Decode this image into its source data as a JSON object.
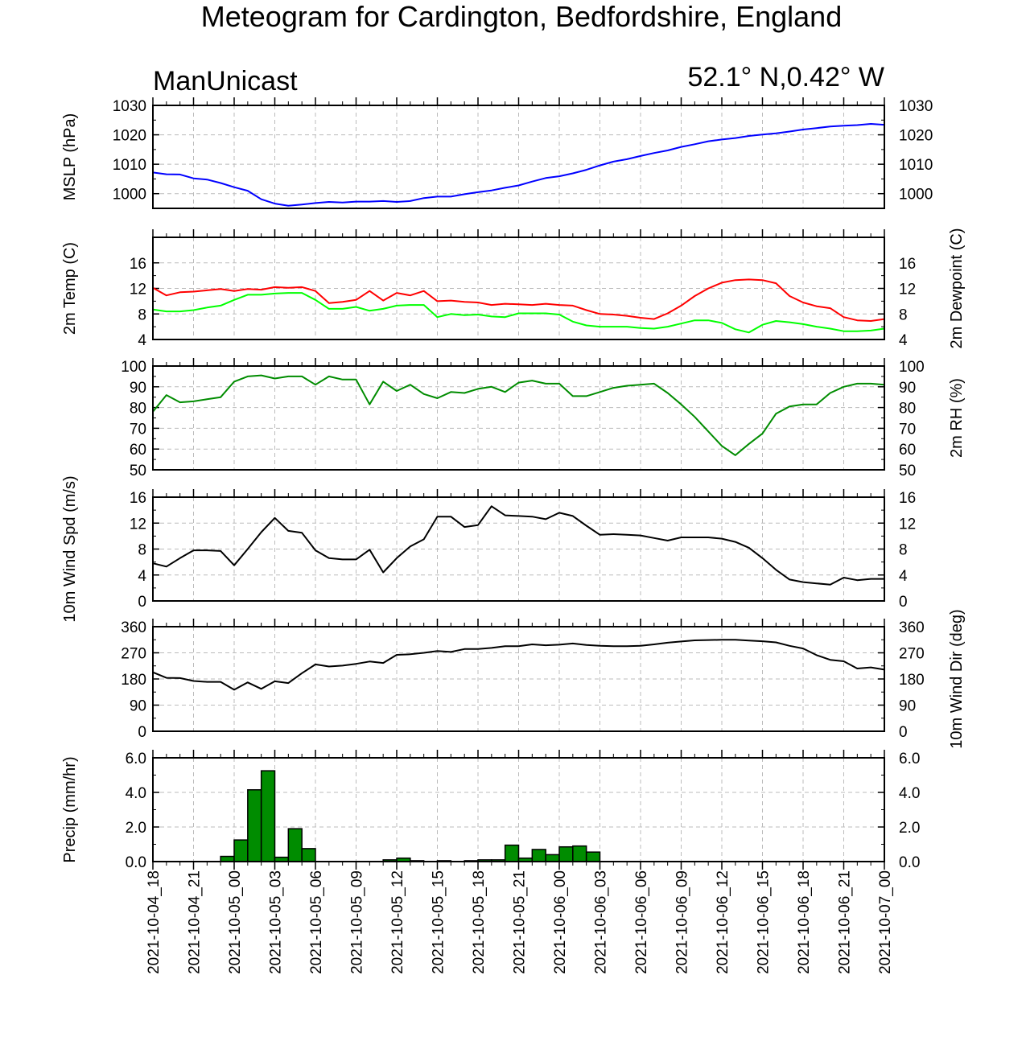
{
  "title": "Meteogram for Cardington, Bedfordshire, England",
  "model": "ManUnicast",
  "location": "52.1° N,0.42° W",
  "chart_data": [
    {
      "id": "mslp",
      "type": "line",
      "left_label": "MSLP (hPa)",
      "right_label": "",
      "ylim": [
        995,
        1030
      ],
      "yticks": [
        1000,
        1010,
        1020,
        1030
      ],
      "ytick_labels": [
        "1000",
        "1010",
        "1020",
        "1030"
      ],
      "grid": true,
      "series": [
        {
          "color": "#0000ff",
          "values": [
            1007.2,
            1006.6,
            1006.5,
            1005.2,
            1004.8,
            1003.6,
            1002.2,
            1001,
            998.1,
            996.6,
            995.9,
            996.3,
            996.8,
            997.2,
            997,
            997.3,
            997.3,
            997.5,
            997.2,
            997.5,
            998.5,
            999,
            999,
            999.8,
            1000.5,
            1001.1,
            1002,
            1002.8,
            1004.1,
            1005.3,
            1005.9,
            1006.9,
            1008.1,
            1009.6,
            1010.9,
            1011.7,
            1012.8,
            1013.8,
            1014.7,
            1015.9,
            1016.8,
            1017.8,
            1018.4,
            1018.9,
            1019.6,
            1020.1,
            1020.5,
            1021.1,
            1021.8,
            1022.3,
            1022.8,
            1023.1,
            1023.3,
            1023.7,
            1023.4
          ]
        }
      ]
    },
    {
      "id": "temp",
      "type": "line",
      "left_label": "2m Temp (C)",
      "right_label": "2m Dewpoint (C)",
      "ylim": [
        4,
        20
      ],
      "yticks": [
        4,
        8,
        12,
        16
      ],
      "ytick_labels": [
        "4",
        "8",
        "12",
        "16"
      ],
      "grid": true,
      "series": [
        {
          "color": "#ff0000",
          "values": [
            12.1,
            10.9,
            11.4,
            11.5,
            11.7,
            11.9,
            11.6,
            11.9,
            11.8,
            12.2,
            12.1,
            12.2,
            11.6,
            9.7,
            9.9,
            10.2,
            11.6,
            10.1,
            11.3,
            10.9,
            11.6,
            10,
            10.1,
            9.9,
            9.8,
            9.4,
            9.6,
            9.5,
            9.4,
            9.6,
            9.4,
            9.3,
            8.6,
            8,
            7.9,
            7.7,
            7.4,
            7.2,
            8.1,
            9.3,
            10.8,
            12,
            12.9,
            13.3,
            13.4,
            13.3,
            12.8,
            10.8,
            9.8,
            9.2,
            8.9,
            7.5,
            7,
            6.9,
            7.2
          ]
        },
        {
          "color": "#00ff00",
          "values": [
            8.7,
            8.4,
            8.4,
            8.6,
            9,
            9.3,
            10.2,
            11,
            11,
            11.2,
            11.3,
            11.3,
            10.2,
            8.8,
            8.8,
            9.1,
            8.5,
            8.8,
            9.3,
            9.4,
            9.4,
            7.5,
            8,
            7.8,
            7.9,
            7.6,
            7.5,
            8.1,
            8.1,
            8.1,
            7.9,
            6.8,
            6.2,
            6,
            6,
            6,
            5.8,
            5.7,
            6,
            6.5,
            7,
            7,
            6.6,
            5.6,
            5.1,
            6.3,
            6.9,
            6.7,
            6.4,
            6,
            5.7,
            5.3,
            5.3,
            5.4,
            5.7
          ]
        }
      ]
    },
    {
      "id": "rh",
      "type": "line",
      "left_label": "",
      "right_label": "2m RH (%)",
      "ylim": [
        50,
        100
      ],
      "yticks": [
        50,
        60,
        70,
        80,
        90,
        100
      ],
      "ytick_labels": [
        "50",
        "60",
        "70",
        "80",
        "90",
        "100"
      ],
      "grid": true,
      "series": [
        {
          "color": "#008c00",
          "values": [
            78,
            86,
            82.5,
            83,
            84,
            85,
            92.5,
            95,
            95.5,
            94,
            95,
            95,
            91,
            95,
            93.5,
            93.5,
            81.5,
            92.5,
            88,
            91,
            86.5,
            84.5,
            87.5,
            87,
            89,
            90,
            87.5,
            92,
            93,
            91.5,
            91.5,
            85.5,
            85.5,
            87.5,
            89.5,
            90.5,
            91,
            91.5,
            87,
            81.5,
            75.5,
            68.5,
            61.5,
            57,
            62.5,
            67.5,
            77,
            80.5,
            81.5,
            81.5,
            87,
            90,
            91.5,
            91.5,
            91
          ]
        }
      ]
    },
    {
      "id": "wspd",
      "type": "line",
      "left_label": "10m Wind Spd (m/s)",
      "right_label": "",
      "ylim": [
        0,
        16
      ],
      "yticks": [
        0,
        4,
        8,
        12,
        16
      ],
      "ytick_labels": [
        "0",
        "4",
        "8",
        "12",
        "16"
      ],
      "grid": true,
      "series": [
        {
          "color": "#000000",
          "values": [
            5.8,
            5.3,
            6.6,
            7.8,
            7.8,
            7.7,
            5.5,
            8,
            10.6,
            12.8,
            10.8,
            10.5,
            7.8,
            6.6,
            6.4,
            6.4,
            7.9,
            4.4,
            6.6,
            8.4,
            9.5,
            13,
            13,
            11.4,
            11.7,
            14.6,
            13.2,
            13.1,
            13,
            12.6,
            13.6,
            13.1,
            11.6,
            10.2,
            10.3,
            10.2,
            10.1,
            9.7,
            9.3,
            9.8,
            9.8,
            9.8,
            9.6,
            9.1,
            8.2,
            6.6,
            4.8,
            3.3,
            2.9,
            2.7,
            2.5,
            3.6,
            3.2,
            3.4,
            3.4
          ]
        }
      ]
    },
    {
      "id": "wdir",
      "type": "line",
      "left_label": "",
      "right_label": "10m Wind Dir (deg)",
      "ylim": [
        0,
        360
      ],
      "yticks": [
        0,
        90,
        180,
        270,
        360
      ],
      "ytick_labels": [
        "0",
        "90",
        "180",
        "270",
        "360"
      ],
      "grid": true,
      "series": [
        {
          "color": "#000000",
          "values": [
            203,
            184,
            183,
            173,
            170,
            170,
            143,
            168,
            146,
            172,
            166,
            200,
            230,
            223,
            226,
            232,
            240,
            235,
            263,
            265,
            270,
            276,
            273,
            283,
            283,
            287,
            293,
            293,
            299,
            296,
            298,
            302,
            297,
            294,
            293,
            293,
            294,
            299,
            305,
            309,
            313,
            314,
            315,
            315,
            312,
            310,
            306,
            294,
            285,
            262,
            246,
            241,
            216,
            220,
            212
          ]
        }
      ]
    },
    {
      "id": "precip",
      "type": "bar",
      "left_label": "Precip (mm/hr)",
      "right_label": "",
      "ylim": [
        0,
        6
      ],
      "yticks": [
        0,
        2,
        4,
        6
      ],
      "ytick_labels": [
        "0.0",
        "2.0",
        "4.0",
        "6.0"
      ],
      "grid": true,
      "series": [
        {
          "color": "#008c00",
          "values": [
            0,
            0,
            0,
            0,
            0,
            0.3,
            1.25,
            4.15,
            5.25,
            0.25,
            1.9,
            0.75,
            0,
            0,
            0,
            0,
            0,
            0.1,
            0.2,
            0.05,
            0,
            0.05,
            0,
            0.05,
            0.1,
            0.1,
            0.95,
            0.2,
            0.7,
            0.4,
            0.85,
            0.9,
            0.55,
            0,
            0,
            0,
            0,
            0,
            0,
            0,
            0,
            0,
            0,
            0,
            0,
            0,
            0,
            0,
            0,
            0,
            0,
            0,
            0,
            0,
            0
          ]
        }
      ]
    }
  ],
  "x_axis": {
    "tick_labels": [
      "2021-10-04_18",
      "2021-10-04_21",
      "2021-10-05_00",
      "2021-10-05_03",
      "2021-10-05_06",
      "2021-10-05_09",
      "2021-10-05_12",
      "2021-10-05_15",
      "2021-10-05_18",
      "2021-10-05_21",
      "2021-10-06_00",
      "2021-10-06_03",
      "2021-10-06_06",
      "2021-10-06_09",
      "2021-10-06_12",
      "2021-10-06_15",
      "2021-10-06_18",
      "2021-10-06_21",
      "2021-10-07_00"
    ]
  }
}
